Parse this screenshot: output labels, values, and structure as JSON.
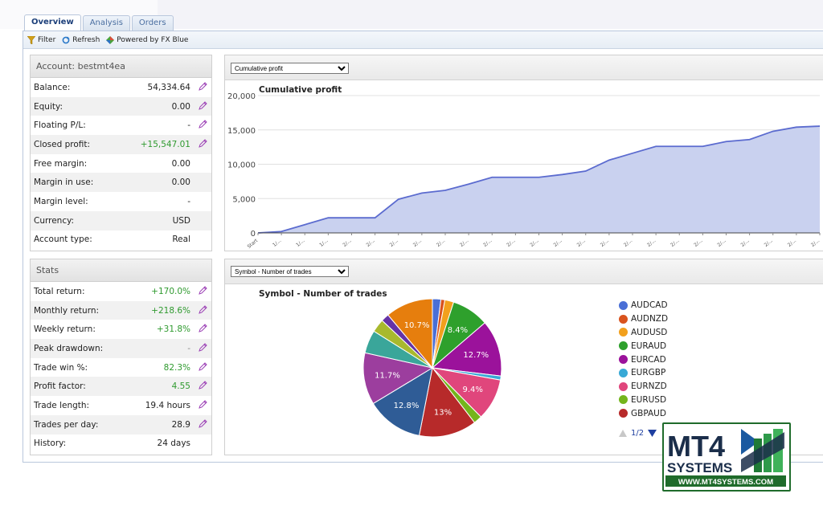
{
  "tabs": [
    {
      "label": "Overview",
      "active": true
    },
    {
      "label": "Analysis",
      "active": false
    },
    {
      "label": "Orders",
      "active": false
    }
  ],
  "toolbar": {
    "filter": "Filter",
    "refresh": "Refresh",
    "powered": "Powered by FX Blue"
  },
  "account": {
    "title": "Account: bestmt4ea",
    "rows": [
      {
        "label": "Balance:",
        "value": "54,334.64",
        "color": "normal",
        "editable": true
      },
      {
        "label": "Equity:",
        "value": "0.00",
        "color": "normal",
        "editable": true
      },
      {
        "label": "Floating P/L:",
        "value": "-",
        "color": "normal",
        "editable": true
      },
      {
        "label": "Closed profit:",
        "value": "+15,547.01",
        "color": "pos",
        "editable": true
      },
      {
        "label": "Free margin:",
        "value": "0.00",
        "color": "normal",
        "editable": false
      },
      {
        "label": "Margin in use:",
        "value": "0.00",
        "color": "normal",
        "editable": false
      },
      {
        "label": "Margin level:",
        "value": "-",
        "color": "normal",
        "editable": false
      },
      {
        "label": "Currency:",
        "value": "USD",
        "color": "normal",
        "editable": false
      },
      {
        "label": "Account type:",
        "value": "Real",
        "color": "normal",
        "editable": false
      }
    ]
  },
  "stats": {
    "title": "Stats",
    "rows": [
      {
        "label": "Total return:",
        "value": "+170.0%",
        "color": "pos",
        "editable": true
      },
      {
        "label": "Monthly return:",
        "value": "+218.6%",
        "color": "pos",
        "editable": true
      },
      {
        "label": "Weekly return:",
        "value": "+31.8%",
        "color": "pos",
        "editable": true
      },
      {
        "label": "Peak drawdown:",
        "value": "-",
        "color": "muted",
        "editable": true
      },
      {
        "label": "Trade win %:",
        "value": "82.3%",
        "color": "pos",
        "editable": true
      },
      {
        "label": "Profit factor:",
        "value": "4.55",
        "color": "pos",
        "editable": true
      },
      {
        "label": "Trade length:",
        "value": "19.4 hours",
        "color": "normal",
        "editable": true
      },
      {
        "label": "Trades per day:",
        "value": "28.9",
        "color": "normal",
        "editable": true
      },
      {
        "label": "History:",
        "value": "24 days",
        "color": "normal",
        "editable": false
      }
    ]
  },
  "chart_select": {
    "selected": "Cumulative profit"
  },
  "pie_select": {
    "selected": "Symbol - Number of trades"
  },
  "chart_data": [
    {
      "type": "area",
      "title": "Cumulative profit",
      "ylim": [
        0,
        20000
      ],
      "yticks": [
        0,
        5000,
        10000,
        15000,
        20000
      ],
      "ytick_labels": [
        "0",
        "5,000",
        "10,000",
        "15,000",
        "20,000"
      ],
      "xtick_labels": [
        "Start",
        "1/...",
        "1/...",
        "1/...",
        "2/...",
        "2/...",
        "2/...",
        "2/...",
        "2/...",
        "2/...",
        "2/...",
        "2/...",
        "2/...",
        "2/...",
        "2/...",
        "2/...",
        "2/...",
        "2/...",
        "2/...",
        "2/...",
        "2/...",
        "2/...",
        "2/...",
        "2/...",
        "2/..."
      ],
      "values": [
        0,
        200,
        1200,
        2200,
        2200,
        2200,
        4900,
        5800,
        6200,
        7100,
        8100,
        8100,
        8100,
        8500,
        9000,
        10600,
        11600,
        12600,
        12600,
        12600,
        13300,
        13600,
        14800,
        15400,
        15547
      ],
      "fill": "#c9d1ef",
      "line": "#5b6bcf"
    },
    {
      "type": "pie",
      "title": "Symbol - Number of trades",
      "slices": [
        {
          "label": "AUDCAD",
          "value": 1.9,
          "color": "#4a6fd6",
          "text": ""
        },
        {
          "label": "AUDNZD",
          "value": 0.9,
          "color": "#d9531e",
          "text": ""
        },
        {
          "label": "AUDUSD",
          "value": 2.0,
          "color": "#f2a01d",
          "text": ""
        },
        {
          "label": "EURAUD",
          "value": 8.4,
          "color": "#2ea02c",
          "text": "8.4%"
        },
        {
          "label": "EURCAD",
          "value": 12.7,
          "color": "#9b129b",
          "text": "12.7%"
        },
        {
          "label": "EURGBP",
          "value": 0.9,
          "color": "#38a9d6",
          "text": ""
        },
        {
          "label": "EURNZD",
          "value": 9.4,
          "color": "#e0467c",
          "text": "9.4%"
        },
        {
          "label": "EURUSD",
          "value": 1.9,
          "color": "#74b51c",
          "text": ""
        },
        {
          "label": "GBPAUD",
          "value": 13.0,
          "color": "#b72a2a",
          "text": "13%"
        },
        {
          "label": "",
          "value": 12.8,
          "color": "#2f5c96",
          "text": "12.8%"
        },
        {
          "label": "",
          "value": 11.7,
          "color": "#9c3e9e",
          "text": "11.7%"
        },
        {
          "label": "",
          "value": 5.2,
          "color": "#3aa69a",
          "text": ""
        },
        {
          "label": "",
          "value": 3.0,
          "color": "#a8b92e",
          "text": ""
        },
        {
          "label": "",
          "value": 1.8,
          "color": "#6533a6",
          "text": ""
        },
        {
          "label": "",
          "value": 10.7,
          "color": "#e67e0d",
          "text": "10.7%"
        }
      ],
      "legend_visible": [
        "AUDCAD",
        "AUDNZD",
        "AUDUSD",
        "EURAUD",
        "EURCAD",
        "EURGBP",
        "EURNZD",
        "EURUSD",
        "GBPAUD"
      ]
    }
  ],
  "pager": {
    "text": "1/2"
  },
  "logo": {
    "top": "MT4",
    "middle": "SYSTEMS",
    "url": "WWW.MT4SYSTEMS.COM"
  }
}
